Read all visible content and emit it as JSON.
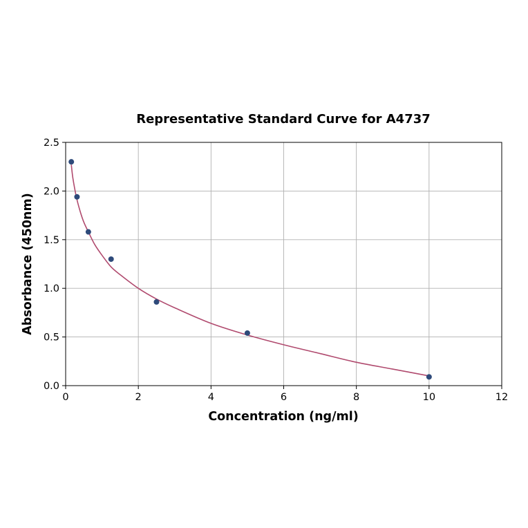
{
  "chart_data": {
    "type": "scatter",
    "title": "Representative Standard Curve for A4737",
    "xlabel": "Concentration (ng/ml)",
    "ylabel": "Absorbance (450nm)",
    "xlim": [
      0,
      12
    ],
    "ylim": [
      0,
      2.5
    ],
    "x_ticks": [
      "0",
      "2",
      "4",
      "6",
      "8",
      "10",
      "12"
    ],
    "y_ticks": [
      "0.0",
      "0.5",
      "1.0",
      "1.5",
      "2.0",
      "2.5"
    ],
    "grid": true,
    "legend": "none",
    "series": [
      {
        "type": "scatter",
        "color": "#2e4a7a",
        "x": [
          0.156,
          0.312,
          0.625,
          1.25,
          2.5,
          5.0,
          10.0
        ],
        "y": [
          2.3,
          1.94,
          1.58,
          1.3,
          0.86,
          0.54,
          0.09
        ]
      },
      {
        "type": "line",
        "color": "#b04a6e",
        "x": [
          0.156,
          0.2,
          0.3,
          0.4,
          0.5,
          0.625,
          0.8,
          1.0,
          1.25,
          1.5,
          2.0,
          2.5,
          3.0,
          4.0,
          5.0,
          6.0,
          7.0,
          8.0,
          9.0,
          10.0
        ],
        "y": [
          2.27,
          2.13,
          1.93,
          1.79,
          1.68,
          1.58,
          1.45,
          1.34,
          1.22,
          1.14,
          1.0,
          0.89,
          0.8,
          0.64,
          0.52,
          0.42,
          0.33,
          0.24,
          0.17,
          0.1
        ]
      }
    ]
  }
}
